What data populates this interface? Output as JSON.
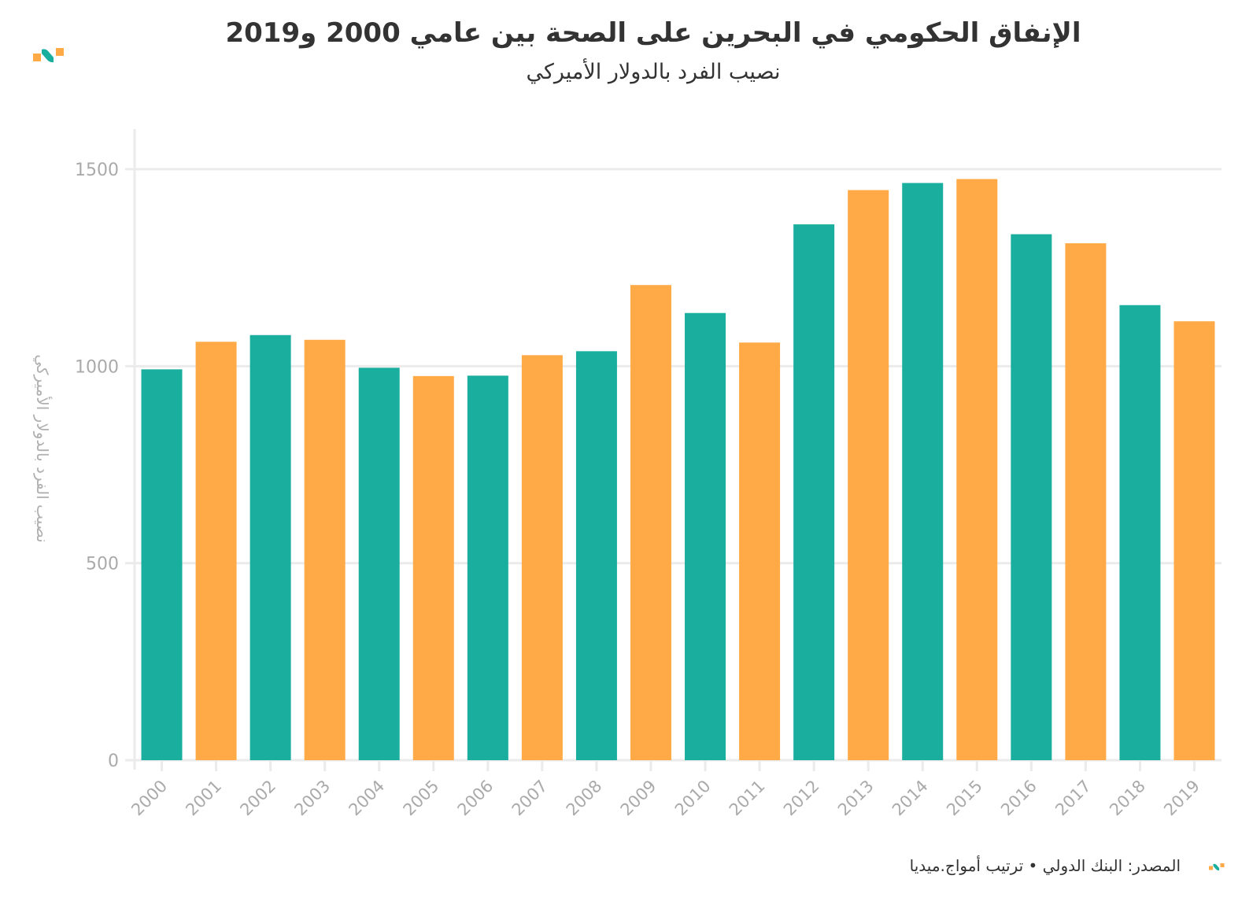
{
  "title": "الإنفاق الحكومي في البحرين على الصحة بين عامي 2000 و2019",
  "subtitle": "نصيب الفرد بالدولار الأميركي",
  "footer": "المصدر: البنك الدولي • ترتيب أمواج.ميديا",
  "logo_icon": "amwaj-media-logo-icon",
  "colors": {
    "teal": "#1aae9f",
    "orange": "#ffaa47",
    "grid": "#ebebeb",
    "tick_text": "#aaaaaa"
  },
  "chart_data": {
    "type": "bar",
    "title": "الإنفاق الحكومي في البحرين على الصحة بين عامي 2000 و2019",
    "subtitle": "نصيب الفرد بالدولار الأميركي",
    "xlabel": "",
    "ylabel": "نصيب الفرد بالدولار الأميركي",
    "ylim": [
      0,
      1600
    ],
    "yticks": [
      0,
      500,
      1000,
      1500
    ],
    "ytick_labels": [
      "0",
      "500",
      "1000",
      "1500"
    ],
    "grid": true,
    "legend": "none",
    "categories": [
      "2000",
      "2001",
      "2002",
      "2003",
      "2004",
      "2005",
      "2006",
      "2007",
      "2008",
      "2009",
      "2010",
      "2011",
      "2012",
      "2013",
      "2014",
      "2015",
      "2016",
      "2017",
      "2018",
      "2019"
    ],
    "values": [
      992,
      1062,
      1079,
      1067,
      996,
      975,
      976,
      1028,
      1038,
      1206,
      1135,
      1060,
      1360,
      1447,
      1465,
      1475,
      1335,
      1312,
      1155,
      1114
    ],
    "bar_colors": [
      "teal",
      "orange",
      "teal",
      "orange",
      "teal",
      "orange",
      "teal",
      "orange",
      "teal",
      "orange",
      "teal",
      "orange",
      "teal",
      "orange",
      "teal",
      "orange",
      "teal",
      "orange",
      "teal",
      "orange"
    ]
  }
}
